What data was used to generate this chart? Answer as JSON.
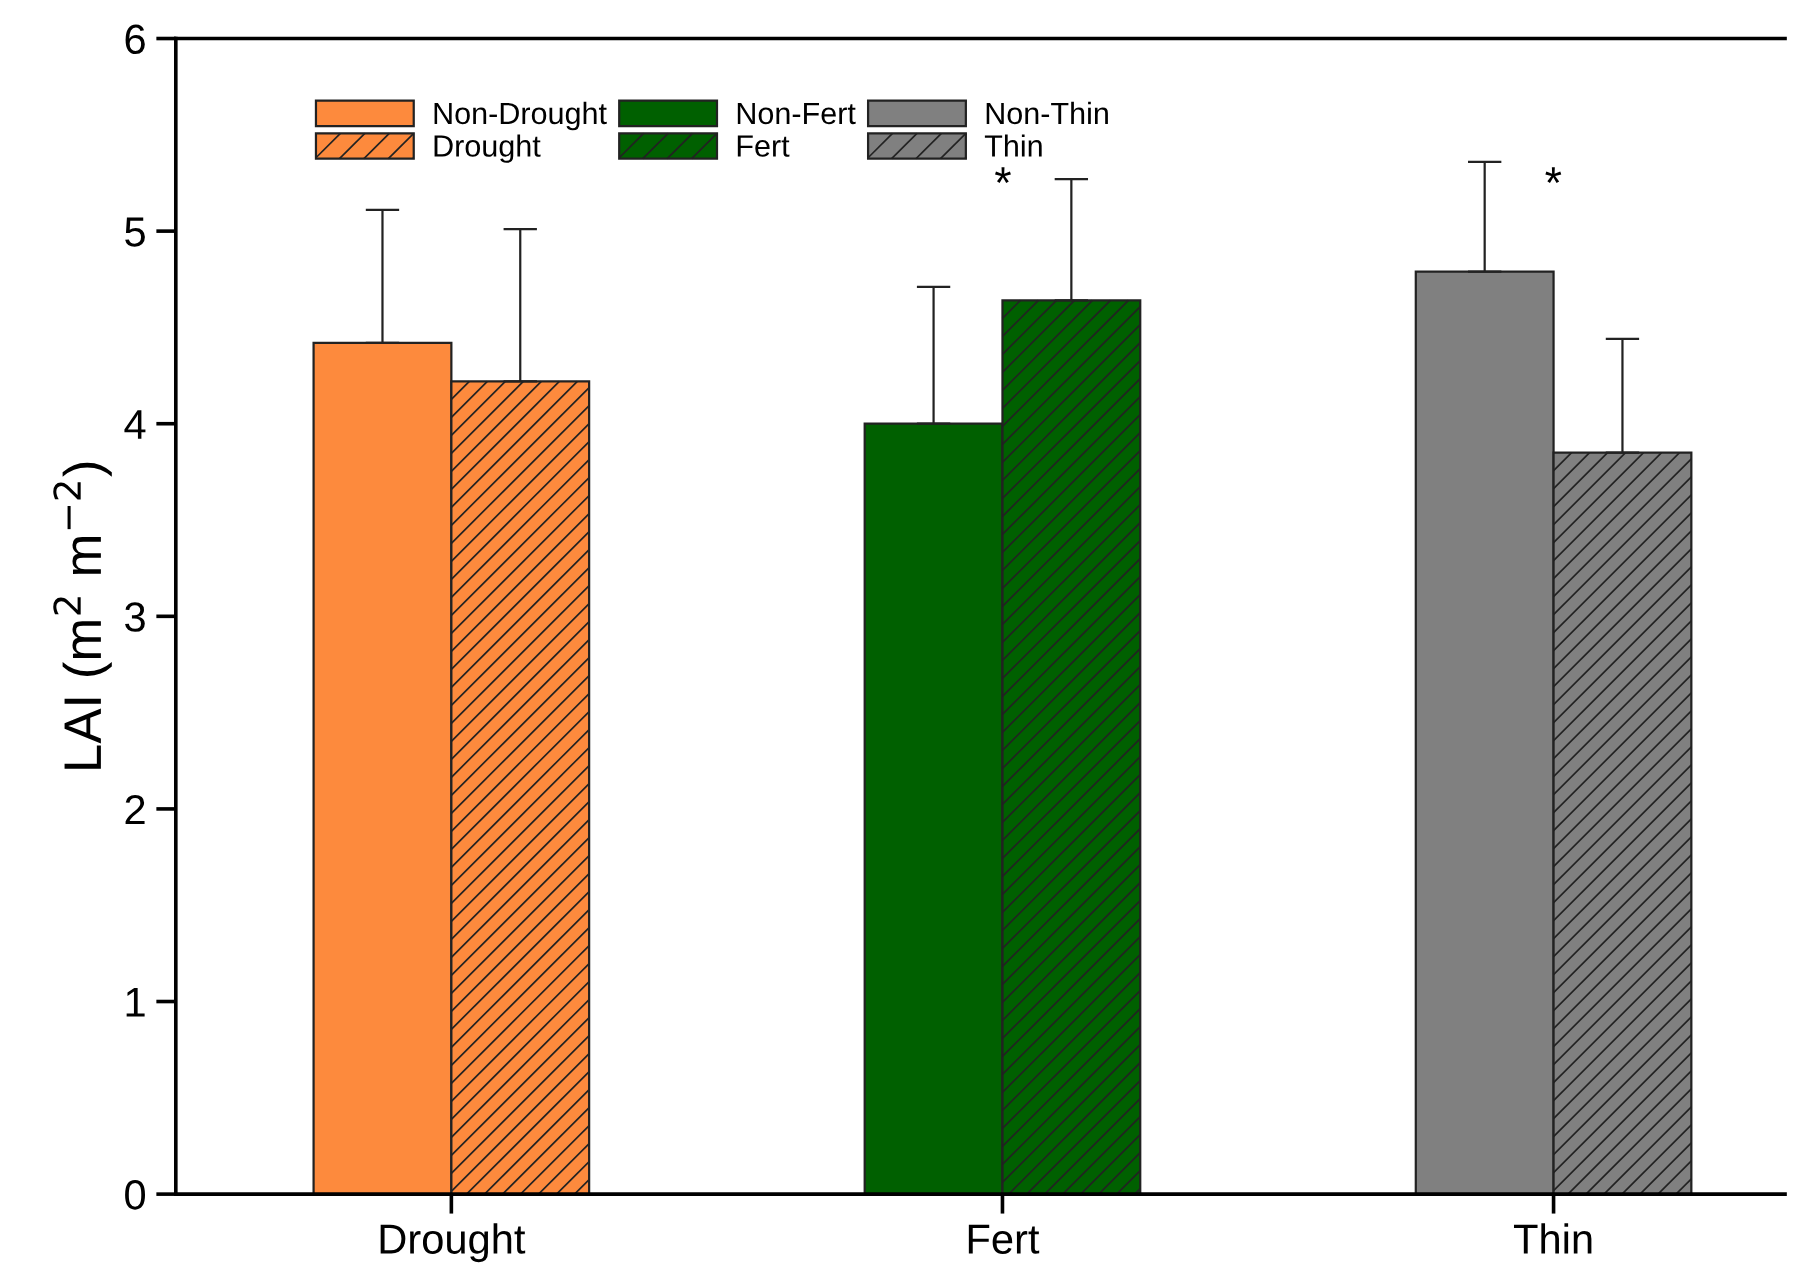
{
  "chart_data": {
    "type": "bar",
    "ylabel": "LAI (m$^{2}$ m$^{−2}$)",
    "categories": [
      "Drought",
      "Fert",
      "Thin"
    ],
    "series": [
      {
        "name": "Non-Drought",
        "color": "#fd8a3d",
        "values": [
          4.42,
          null,
          null
        ],
        "errors": [
          [
            4.42,
            5.11
          ],
          null,
          null
        ]
      },
      {
        "name": "Drought",
        "color": "#fd8a3d",
        "values": [
          4.22,
          null,
          null
        ],
        "errors": [
          [
            4.22,
            5.01
          ],
          null,
          null
        ]
      },
      {
        "name": "Non-Fert",
        "color": "#006000",
        "values": [
          null,
          4.0,
          null
        ],
        "errors": [
          null,
          [
            4.0,
            4.71
          ],
          null
        ]
      },
      {
        "name": "Fert",
        "color": "#006000",
        "values": [
          null,
          4.64,
          null
        ],
        "errors": [
          null,
          [
            4.64,
            5.27
          ],
          null
        ]
      },
      {
        "name": "Non-Thin",
        "color": "#808080",
        "values": [
          null,
          null,
          4.79
        ],
        "errors": [
          null,
          null,
          [
            4.79,
            5.36
          ]
        ]
      },
      {
        "name": "Thin",
        "color": "#808080",
        "values": [
          null,
          null,
          3.85
        ],
        "errors": [
          null,
          null,
          [
            3.85,
            4.44
          ]
        ]
      }
    ],
    "annotations": [
      "*",
      "*"
    ],
    "ylim": [
      0,
      6
    ],
    "yticks": [
      0,
      1,
      2,
      3,
      4,
      5,
      6
    ],
    "legend": "top left",
    "grid": false
  }
}
